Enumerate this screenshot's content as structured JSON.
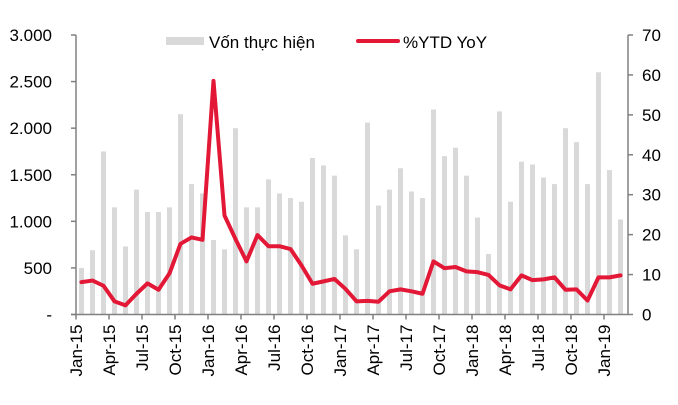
{
  "chart_data": {
    "type": "bar+line",
    "title": "",
    "legend": {
      "position": "top",
      "entries": [
        {
          "label": "Vốn thực hiện",
          "kind": "bar",
          "color": "#d9d9d9"
        },
        {
          "label": "%YTD YoY",
          "kind": "line",
          "color": "#e31837"
        }
      ]
    },
    "categories": [
      "Jan-15",
      "Feb-15",
      "Mar-15",
      "Apr-15",
      "May-15",
      "Jun-15",
      "Jul-15",
      "Aug-15",
      "Sep-15",
      "Oct-15",
      "Nov-15",
      "Dec-15",
      "Jan-16",
      "Feb-16",
      "Mar-16",
      "Apr-16",
      "May-16",
      "Jun-16",
      "Jul-16",
      "Aug-16",
      "Sep-16",
      "Oct-16",
      "Nov-16",
      "Dec-16",
      "Jan-17",
      "Feb-17",
      "Mar-17",
      "Apr-17",
      "May-17",
      "Jun-17",
      "Jul-17",
      "Aug-17",
      "Sep-17",
      "Oct-17",
      "Nov-17",
      "Dec-17",
      "Jan-18",
      "Feb-18",
      "Mar-18",
      "Apr-18",
      "May-18",
      "Jun-18",
      "Jul-18",
      "Aug-18",
      "Sep-18",
      "Oct-18",
      "Nov-18",
      "Dec-18",
      "Jan-19",
      "Feb-19"
    ],
    "x_tick_labels": [
      "Jan-15",
      "Apr-15",
      "Jul-15",
      "Oct-15",
      "Jan-16",
      "Apr-16",
      "Jul-16",
      "Oct-16",
      "Jan-17",
      "Apr-17",
      "Jul-17",
      "Oct-17",
      "Jan-18",
      "Apr-18",
      "Jul-18",
      "Oct-18",
      "Jan-19"
    ],
    "series": [
      {
        "name": "Vốn thực hiện",
        "type": "bar",
        "axis": "left",
        "color": "#d9d9d9",
        "values": [
          500,
          690,
          1750,
          1150,
          730,
          1340,
          1100,
          1100,
          1150,
          2150,
          1400,
          1300,
          800,
          700,
          2000,
          1150,
          1150,
          1450,
          1300,
          1250,
          1210,
          1680,
          1600,
          1490,
          850,
          700,
          2060,
          1170,
          1340,
          1570,
          1320,
          1250,
          2200,
          1700,
          1790,
          1490,
          1040,
          650,
          2180,
          1210,
          1640,
          1610,
          1470,
          1400,
          2000,
          1850,
          1400,
          2600,
          1550,
          1020
        ]
      },
      {
        "name": "%YTD YoY",
        "type": "line",
        "axis": "right",
        "color": "#e31837",
        "values": [
          8.1,
          8.5,
          7.2,
          3.3,
          2.3,
          5.2,
          7.8,
          6.2,
          10.3,
          17.7,
          19.3,
          18.7,
          58.5,
          24.8,
          18.9,
          13.3,
          19.9,
          17.1,
          17.1,
          16.4,
          12.3,
          7.7,
          8.3,
          8.9,
          6.4,
          3.3,
          3.4,
          3.2,
          5.8,
          6.3,
          5.8,
          5.2,
          13.3,
          11.6,
          11.9,
          10.8,
          10.6,
          9.9,
          7.3,
          6.3,
          9.8,
          8.6,
          8.8,
          9.3,
          6.2,
          6.3,
          3.5,
          9.3,
          9.3,
          9.8
        ]
      }
    ],
    "left_axis": {
      "range": [
        0,
        3000
      ],
      "ticks": [
        0,
        500,
        1000,
        1500,
        2000,
        2500,
        3000
      ],
      "tick_labels": [
        "-",
        "500",
        "1.000",
        "1.500",
        "2.000",
        "2.500",
        "3.000"
      ]
    },
    "right_axis": {
      "range": [
        0,
        70
      ],
      "ticks": [
        0,
        10,
        20,
        30,
        40,
        50,
        60,
        70
      ],
      "tick_labels": [
        "0",
        "10",
        "20",
        "30",
        "40",
        "50",
        "60",
        "70"
      ]
    },
    "xlabel": "",
    "ylabel": "",
    "ylim": [
      0,
      3000
    ],
    "y2lim": [
      0,
      70
    ],
    "grid": false
  },
  "colors": {
    "axis": "#808080",
    "bar": "#d9d9d9",
    "line": "#e31837"
  }
}
